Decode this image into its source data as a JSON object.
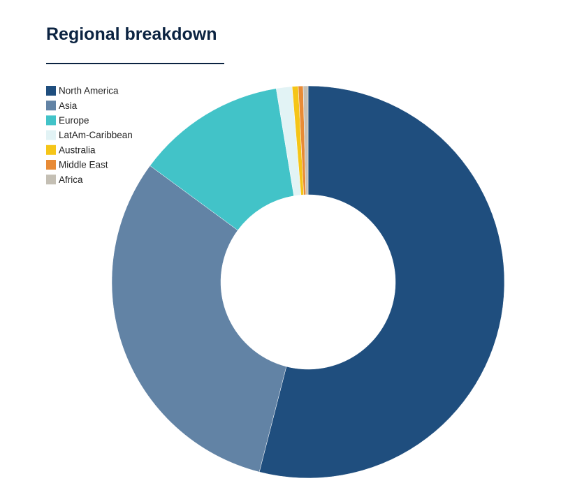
{
  "chart_data": {
    "type": "donut",
    "title": "Regional breakdown",
    "categories": [
      "North America",
      "Asia",
      "Europe",
      "LatAm-Caribbean",
      "Australia",
      "Middle East",
      "Africa"
    ],
    "values": [
      54.0,
      31.1,
      12.3,
      1.3,
      0.5,
      0.4,
      0.4
    ],
    "colors": [
      "#1f4e7e",
      "#6283a5",
      "#42c3c8",
      "#e2f3f5",
      "#f5c518",
      "#e88b36",
      "#c4bfb4"
    ],
    "legend": "top-left"
  }
}
